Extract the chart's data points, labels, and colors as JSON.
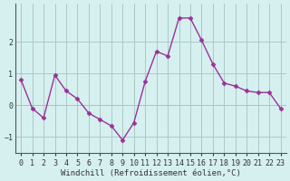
{
  "x": [
    0,
    1,
    2,
    3,
    4,
    5,
    6,
    7,
    8,
    9,
    10,
    11,
    12,
    13,
    14,
    15,
    16,
    17,
    18,
    19,
    20,
    21,
    22,
    23
  ],
  "y": [
    0.8,
    -0.1,
    -0.4,
    0.95,
    0.45,
    0.2,
    -0.25,
    -0.45,
    -0.65,
    -1.1,
    -0.55,
    0.75,
    1.7,
    1.55,
    2.75,
    2.75,
    2.05,
    1.3,
    0.7,
    0.6,
    0.45,
    0.4,
    0.4,
    -0.1
  ],
  "line_color": "#993399",
  "marker": "D",
  "marker_size": 2.5,
  "linewidth": 1.0,
  "bg_color": "#d6f0f0",
  "grid_color": "#aac8c8",
  "axis_color": "#555555",
  "xlabel": "Windchill (Refroidissement éolien,°C)",
  "xlabel_fontsize": 6.5,
  "tick_fontsize": 6.0,
  "ylabel_ticks": [
    -1,
    0,
    1,
    2
  ],
  "xlim": [
    -0.5,
    23.5
  ],
  "ylim": [
    -1.5,
    3.2
  ],
  "tick_color": "#333333"
}
